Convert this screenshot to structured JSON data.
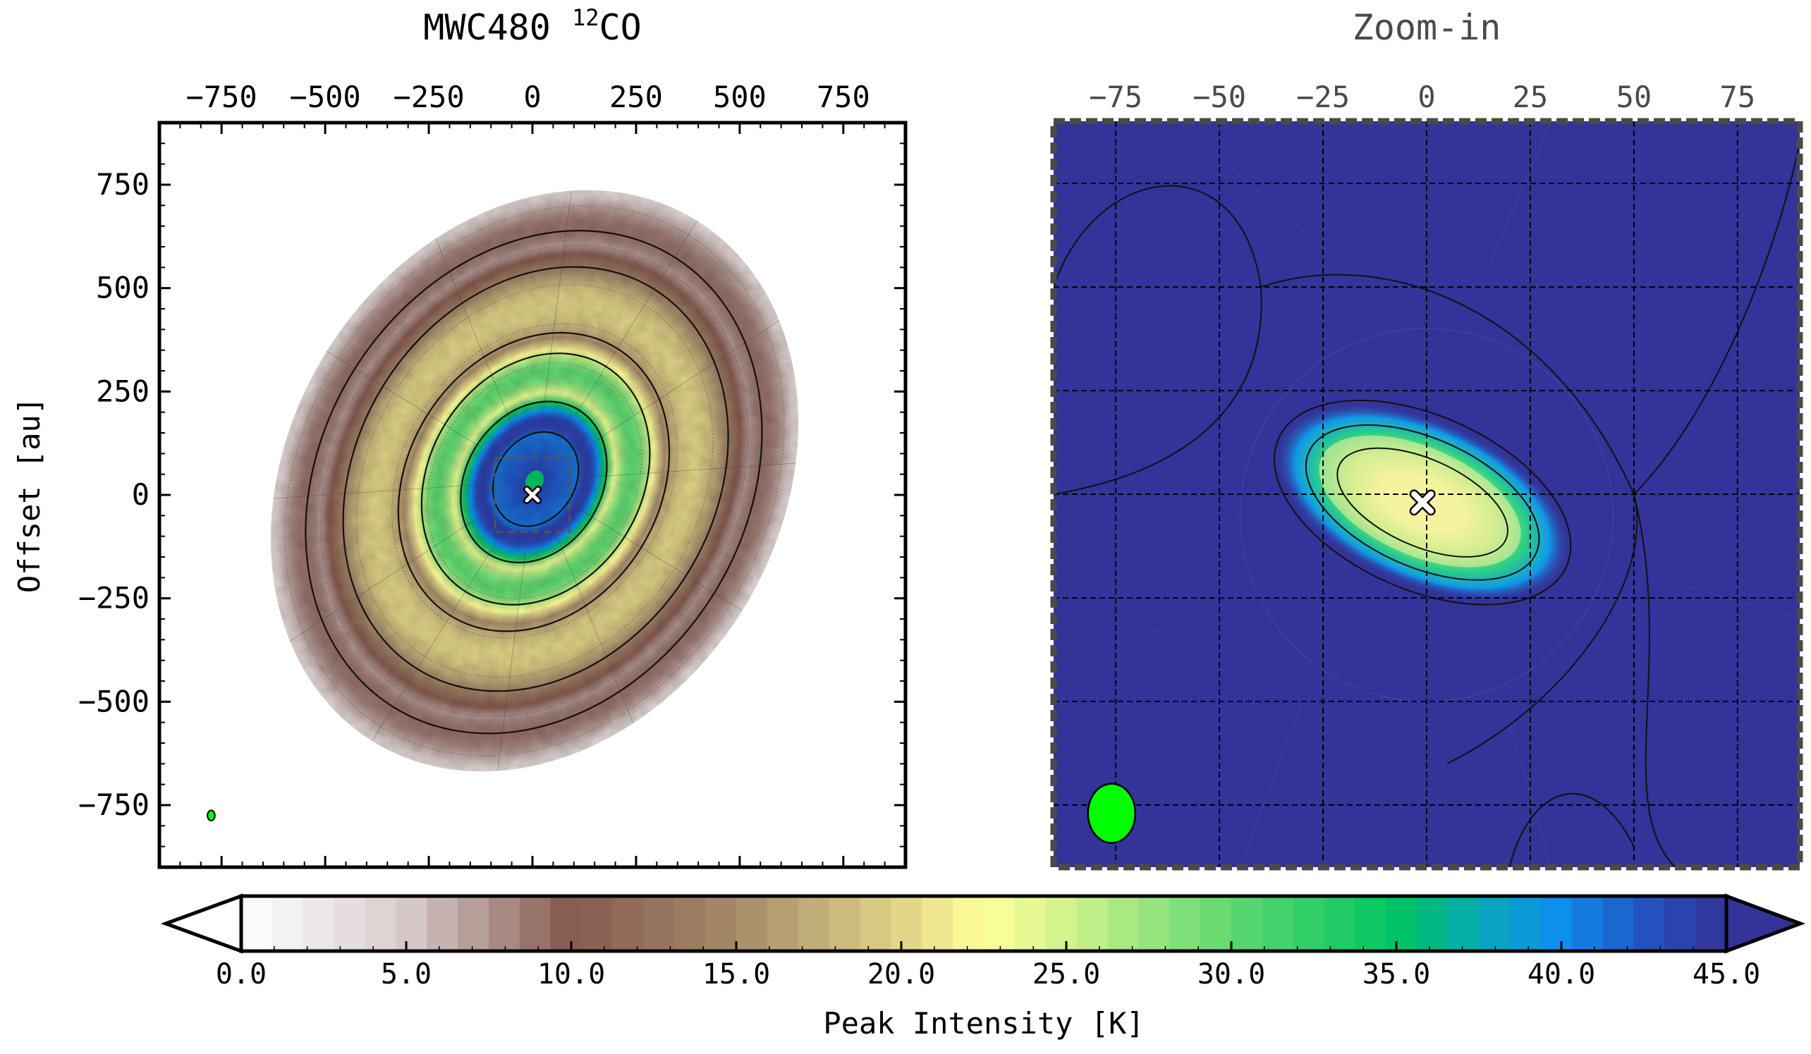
{
  "chart_data": [
    {
      "type": "heatmap",
      "panel": "main",
      "title": "MWC480 ",
      "title_isotope": "12",
      "title_species": "CO",
      "xlabel": "",
      "ylabel": "Offset [au]",
      "xlim": [
        -900,
        900
      ],
      "ylim": [
        -900,
        900
      ],
      "x_ticks": [
        -750,
        -500,
        -250,
        0,
        250,
        500,
        750
      ],
      "x_tick_labels": [
        "−750",
        "−500",
        "−250",
        "0",
        "250",
        "500",
        "750"
      ],
      "y_ticks": [
        750,
        500,
        250,
        0,
        -250,
        -500,
        -750
      ],
      "y_tick_labels": [
        "750",
        "500",
        "250",
        "0",
        "−250",
        "−500",
        "−750"
      ],
      "x_axis_position": "top",
      "star_position": [
        0,
        0
      ],
      "zoom_box": {
        "x": [
          -90,
          90
        ],
        "y": [
          -90,
          90
        ]
      },
      "disk": {
        "outer_radius_au": 740,
        "inclination_deg": 37,
        "position_angle_deg": 148,
        "rings": [
          {
            "radius_au": 650,
            "peak_K": 9
          },
          {
            "radius_au": 450,
            "peak_K": 20
          },
          {
            "radius_au": 280,
            "peak_K": 30
          },
          {
            "radius_au": 150,
            "peak_K": 44
          }
        ]
      },
      "beam": {
        "position_au": [
          -775,
          -775
        ],
        "major_au": 25,
        "minor_au": 18
      }
    },
    {
      "type": "heatmap",
      "panel": "zoom",
      "title": "Zoom-in",
      "xlim": [
        -90,
        90
      ],
      "ylim": [
        -90,
        90
      ],
      "x_ticks": [
        -75,
        -50,
        -25,
        0,
        25,
        50,
        75
      ],
      "x_tick_labels": [
        "−75",
        "−50",
        "−25",
        "0",
        "25",
        "50",
        "75"
      ],
      "x_axis_position": "top",
      "grid": true,
      "background_K": 45,
      "star_position": [
        -1,
        -2
      ],
      "inner_peak_K": 20,
      "beam": {
        "position_au": [
          -76,
          -77
        ],
        "major_au": 13,
        "minor_au": 9.5
      }
    },
    {
      "type": "colorbar",
      "label": "Peak Intensity [K]",
      "range": [
        0,
        45
      ],
      "ticks": [
        0,
        5,
        10,
        15,
        20,
        25,
        30,
        35,
        40,
        45
      ],
      "tick_labels": [
        "0.0",
        "5.0",
        "10.0",
        "15.0",
        "20.0",
        "25.0",
        "30.0",
        "35.0",
        "40.0",
        "45.0"
      ],
      "extend": "both",
      "colormap_stops": [
        {
          "value": 0,
          "color": "#ffffff"
        },
        {
          "value": 5,
          "color": "#d9cccc"
        },
        {
          "value": 10,
          "color": "#845a4f"
        },
        {
          "value": 15,
          "color": "#a68b6a"
        },
        {
          "value": 20,
          "color": "#e0d487"
        },
        {
          "value": 22.5,
          "color": "#ffff99"
        },
        {
          "value": 25,
          "color": "#d2f28c"
        },
        {
          "value": 30,
          "color": "#5fd870"
        },
        {
          "value": 35,
          "color": "#00c461"
        },
        {
          "value": 38,
          "color": "#0aa3c2"
        },
        {
          "value": 40,
          "color": "#0d8ef0"
        },
        {
          "value": 43,
          "color": "#264ab8"
        },
        {
          "value": 45,
          "color": "#333399"
        }
      ]
    }
  ],
  "colors": {
    "beam": "#00ff00",
    "zoom_background": "#333399",
    "zoom_frame": "#4a4a4a",
    "star_marker": "#ffffff"
  }
}
